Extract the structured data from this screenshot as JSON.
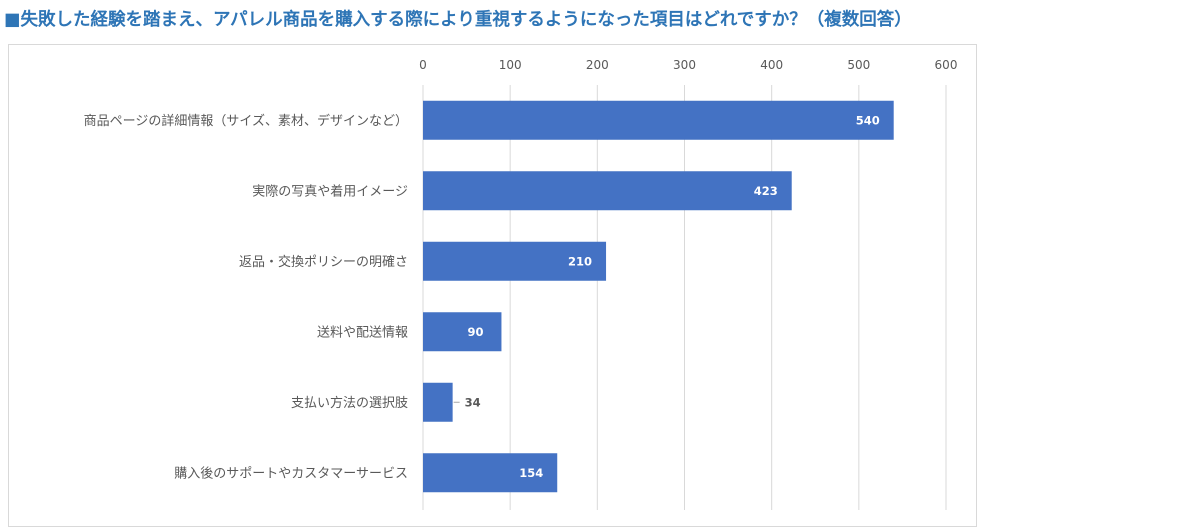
{
  "page": {
    "title": "■失敗した経験を踏まえ、アパレル商品を購入する際により重視するようになった項目はどれですか？（複数回答）"
  },
  "colors": {
    "title": "#2e75b6",
    "bar": "#4472c4",
    "grid": "#d9d9d9",
    "label_inside": "#ffffff",
    "label_outside": "#595959"
  },
  "chart_data": {
    "type": "bar",
    "orientation": "horizontal",
    "categories": [
      "商品ページの詳細情報（サイズ、素材、デザインなど）",
      "実際の写真や着用イメージ",
      "返品・交換ポリシーの明確さ",
      "送料や配送情報",
      "支払い方法の選択肢",
      "購入後のサポートやカスタマーサービス"
    ],
    "values": [
      540,
      423,
      210,
      90,
      34,
      154
    ],
    "xlim": [
      0,
      600
    ],
    "ticks": [
      0,
      100,
      200,
      300,
      400,
      500,
      600
    ],
    "tick_labels": [
      "0",
      "100",
      "200",
      "300",
      "400",
      "500",
      "600"
    ],
    "x_axis_position": "top",
    "grid": true,
    "legend": "none"
  }
}
